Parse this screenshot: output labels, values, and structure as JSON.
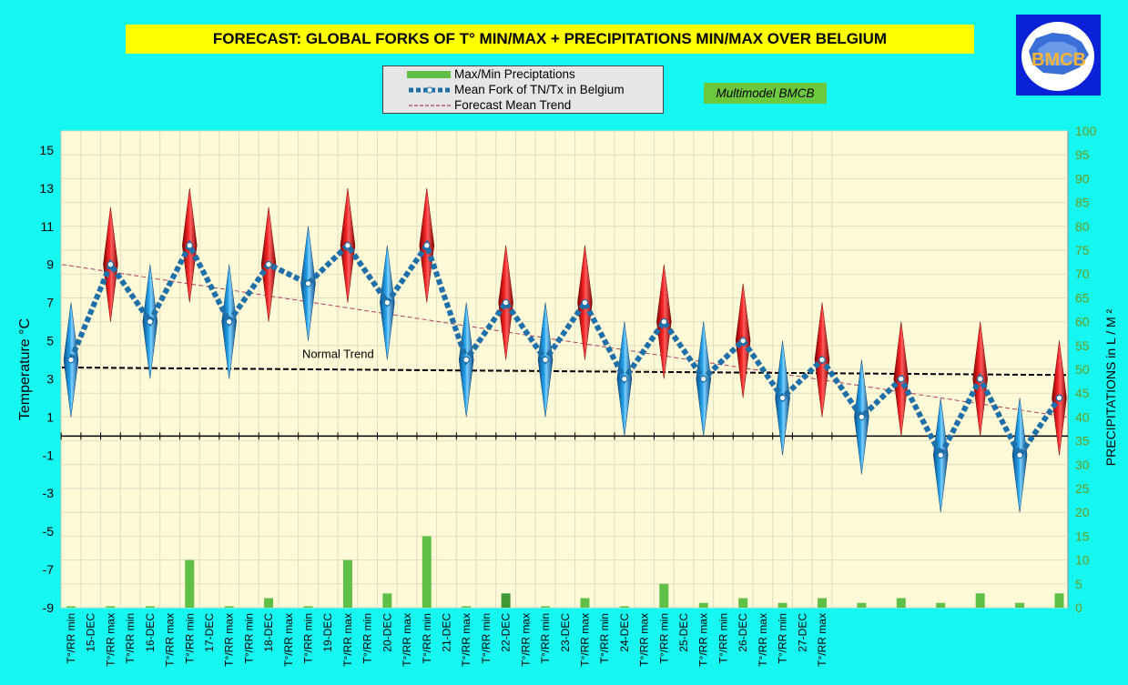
{
  "title": "FORECAST: GLOBAL FORKS OF T° MIN/MAX + PRECIPITATIONS MIN/MAX OVER  BELGIUM",
  "logo": {
    "text": "BMCB"
  },
  "legend": {
    "items": [
      {
        "label": "Max/Min Preciptations",
        "color": "#5fbf46"
      },
      {
        "label": "Mean Fork of TN/Tx in Belgium",
        "color": "#1f6fa8"
      },
      {
        "label": "Forecast Mean Trend",
        "color": "#b04060"
      }
    ]
  },
  "badge": "Multimodel BMCB",
  "chart_data": {
    "type": "line",
    "ylabel": "Temperature  °C",
    "y2label": "PRECIPITATIONS in L / M ²",
    "ylim": [
      -9,
      16
    ],
    "y_ticks": [
      15,
      13,
      11,
      9,
      7,
      5,
      3,
      1,
      -1,
      -3,
      -5,
      -7,
      -9
    ],
    "y2lim": [
      0,
      100
    ],
    "y2_ticks": [
      100,
      95,
      90,
      85,
      80,
      75,
      70,
      65,
      60,
      55,
      50,
      45,
      40,
      35,
      30,
      25,
      20,
      15,
      10,
      5,
      0
    ],
    "categories": [
      "T°/RR min",
      "15-DEC",
      "T°/RR max",
      "T°/RR min",
      "16-DEC",
      "T°/RR max",
      "T°/RR min",
      "17-DEC",
      "T°/RR max",
      "T°/RR min",
      "18-DEC",
      "T°/RR max",
      "T°/RR min",
      "19-DEC",
      "T°/RR max",
      "T°/RR min",
      "20-DEC",
      "T°/RR max",
      "T°/RR min",
      "21-DEC",
      "T°/RR max",
      "T°/RR min",
      "22-DEC",
      "T°/RR max",
      "T°/RR min",
      "23-DEC",
      "T°/RR max",
      "T°/RR min",
      "24-DEC",
      "T°/RR max",
      "T°/RR min",
      "25-DEC",
      "T°/RR max",
      "T°/RR min",
      "26-DEC",
      "T°/RR max",
      "T°/RR min",
      "27-DEC",
      "T°/RR max"
    ],
    "series": [
      {
        "name": "Mean Fork of TN/Tx in Belgium",
        "kind": "line",
        "points": [
          {
            "x": 0,
            "y": 4
          },
          {
            "x": 2,
            "y": 9
          },
          {
            "x": 4,
            "y": 6
          },
          {
            "x": 6,
            "y": 10
          },
          {
            "x": 8,
            "y": 6
          },
          {
            "x": 10,
            "y": 9
          },
          {
            "x": 12,
            "y": 8
          },
          {
            "x": 14,
            "y": 10
          },
          {
            "x": 16,
            "y": 7
          },
          {
            "x": 18,
            "y": 10
          },
          {
            "x": 20,
            "y": 4
          },
          {
            "x": 22,
            "y": 7
          },
          {
            "x": 24,
            "y": 4
          },
          {
            "x": 26,
            "y": 7
          },
          {
            "x": 28,
            "y": 3
          },
          {
            "x": 30,
            "y": 6
          },
          {
            "x": 32,
            "y": 3
          },
          {
            "x": 34,
            "y": 5
          },
          {
            "x": 36,
            "y": 2
          },
          {
            "x": 38,
            "y": 4
          },
          {
            "x": 40,
            "y": 1
          },
          {
            "x": 42,
            "y": 3
          },
          {
            "x": 44,
            "y": -1
          },
          {
            "x": 46,
            "y": 3
          },
          {
            "x": 48,
            "y": -1
          },
          {
            "x": 50,
            "y": 2
          }
        ]
      },
      {
        "name": "Forks",
        "kind": "range",
        "points": [
          {
            "x": 0,
            "low": 1,
            "high": 7,
            "type": "min"
          },
          {
            "x": 2,
            "low": 6,
            "high": 12,
            "type": "max"
          },
          {
            "x": 4,
            "low": 3,
            "high": 9,
            "type": "min"
          },
          {
            "x": 6,
            "low": 7,
            "high": 13,
            "type": "max"
          },
          {
            "x": 8,
            "low": 3,
            "high": 9,
            "type": "min"
          },
          {
            "x": 10,
            "low": 6,
            "high": 12,
            "type": "max"
          },
          {
            "x": 12,
            "low": 5,
            "high": 11,
            "type": "min"
          },
          {
            "x": 14,
            "low": 7,
            "high": 13,
            "type": "max"
          },
          {
            "x": 16,
            "low": 4,
            "high": 10,
            "type": "min"
          },
          {
            "x": 18,
            "low": 7,
            "high": 13,
            "type": "max"
          },
          {
            "x": 20,
            "low": 1,
            "high": 7,
            "type": "min"
          },
          {
            "x": 22,
            "low": 4,
            "high": 10,
            "type": "max"
          },
          {
            "x": 24,
            "low": 1,
            "high": 7,
            "type": "min"
          },
          {
            "x": 26,
            "low": 4,
            "high": 10,
            "type": "max"
          },
          {
            "x": 28,
            "low": 0,
            "high": 6,
            "type": "min"
          },
          {
            "x": 30,
            "low": 3,
            "high": 9,
            "type": "max"
          },
          {
            "x": 32,
            "low": 0,
            "high": 6,
            "type": "min"
          },
          {
            "x": 34,
            "low": 2,
            "high": 8,
            "type": "max"
          },
          {
            "x": 36,
            "low": -1,
            "high": 5,
            "type": "min"
          },
          {
            "x": 38,
            "low": 1,
            "high": 7,
            "type": "max"
          },
          {
            "x": 40,
            "low": -2,
            "high": 4,
            "type": "min"
          },
          {
            "x": 42,
            "low": 0,
            "high": 6,
            "type": "max"
          },
          {
            "x": 44,
            "low": -4,
            "high": 2,
            "type": "min"
          },
          {
            "x": 46,
            "low": 0,
            "high": 6,
            "type": "max"
          },
          {
            "x": 48,
            "low": -4,
            "high": 2,
            "type": "min"
          },
          {
            "x": 50,
            "low": -1,
            "high": 5,
            "type": "max"
          }
        ]
      },
      {
        "name": "Max/Min Preciptations",
        "kind": "bar",
        "axis": "y2",
        "points": [
          {
            "x": 0,
            "y": 0.3
          },
          {
            "x": 2,
            "y": 0.3
          },
          {
            "x": 4,
            "y": 0.3
          },
          {
            "x": 6,
            "y": 10
          },
          {
            "x": 8,
            "y": 0.3
          },
          {
            "x": 10,
            "y": 2
          },
          {
            "x": 12,
            "y": 0.3
          },
          {
            "x": 14,
            "y": 10
          },
          {
            "x": 16,
            "y": 3
          },
          {
            "x": 18,
            "y": 15
          },
          {
            "x": 20,
            "y": 0.3
          },
          {
            "x": 22,
            "y": 3
          },
          {
            "x": 24,
            "y": 0.3
          },
          {
            "x": 26,
            "y": 2
          },
          {
            "x": 28,
            "y": 0.3
          },
          {
            "x": 30,
            "y": 5
          },
          {
            "x": 32,
            "y": 1
          },
          {
            "x": 34,
            "y": 2
          },
          {
            "x": 36,
            "y": 1
          },
          {
            "x": 38,
            "y": 2
          },
          {
            "x": 40,
            "y": 1
          },
          {
            "x": 42,
            "y": 2
          },
          {
            "x": 44,
            "y": 1
          },
          {
            "x": 46,
            "y": 3
          },
          {
            "x": 48,
            "y": 1
          },
          {
            "x": 50,
            "y": 3
          }
        ]
      },
      {
        "name": "Forecast Mean Trend",
        "kind": "trend",
        "from": {
          "x": 0,
          "y": 9
        },
        "to": {
          "x": 50,
          "y": 1
        }
      },
      {
        "name": "Normal Trend",
        "kind": "trend",
        "from": {
          "x": 0,
          "y": 3.6
        },
        "to": {
          "x": 50,
          "y": 3.2
        }
      }
    ],
    "annotations": [
      {
        "text": "Normal Trend",
        "x": 14,
        "y": 4.2
      }
    ],
    "grid": true
  }
}
